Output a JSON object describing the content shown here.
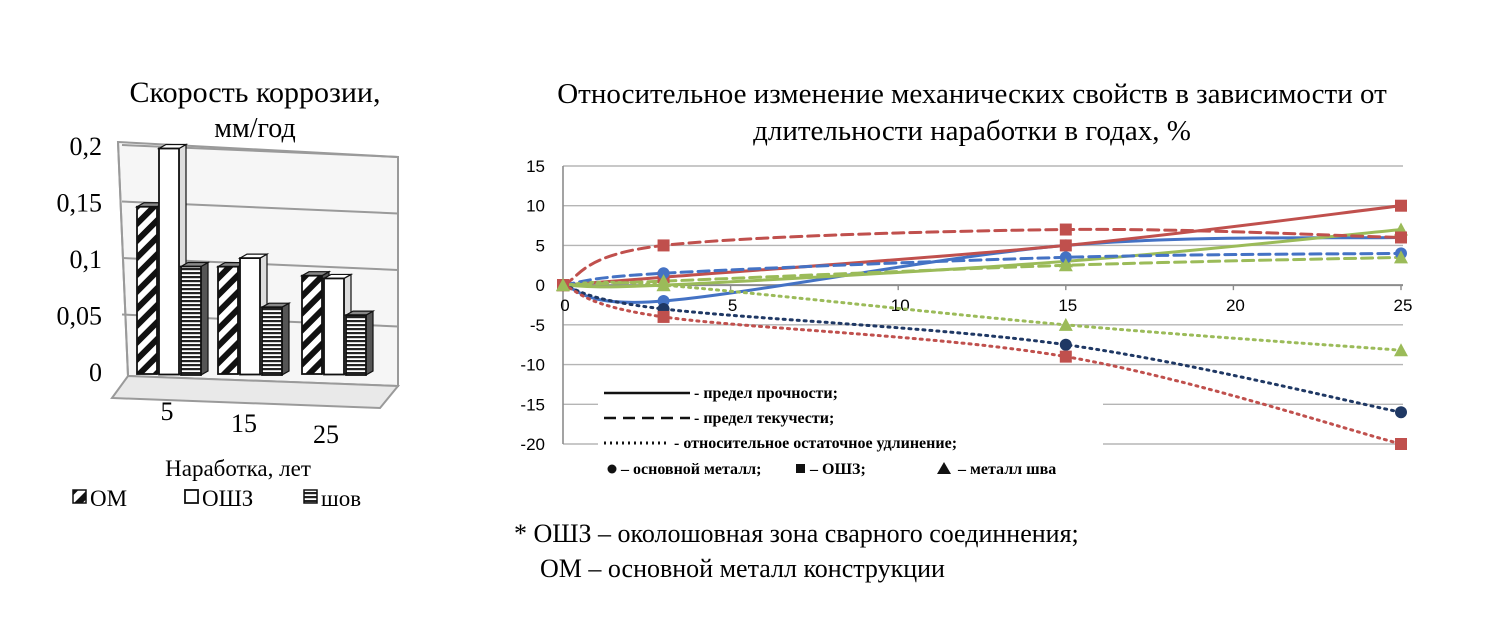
{
  "chart_data": [
    {
      "type": "bar",
      "title_line1": "Скорость коррозии,",
      "title_line2": "мм/год",
      "xlabel": "Наработка, лет",
      "categories": [
        "5",
        "15",
        "25"
      ],
      "y_ticks": [
        "0",
        "0,05",
        "0,1",
        "0,15",
        "0,2"
      ],
      "ylim": [
        0,
        0.2
      ],
      "series": [
        {
          "name": "ОМ",
          "pattern": "diagonal-hatch",
          "values": [
            0.148,
            0.095,
            0.087
          ]
        },
        {
          "name": "ОШЗ",
          "pattern": "white",
          "values": [
            0.2,
            0.103,
            0.085
          ]
        },
        {
          "name": "шов",
          "pattern": "horizontal-hatch",
          "values": [
            0.096,
            0.06,
            0.053
          ]
        }
      ],
      "legend": [
        "ОМ",
        "ОШЗ",
        "шов"
      ]
    },
    {
      "type": "line",
      "title_line1": "Относительное изменение механических свойств в зависимости от",
      "title_line2": "длительности наработки в годах, %",
      "x": [
        0,
        3,
        15,
        25
      ],
      "x_ticks": [
        "0",
        "5",
        "10",
        "15",
        "20",
        "25"
      ],
      "y_ticks": [
        "15",
        "10",
        "5",
        "0",
        "-5",
        "-10",
        "-15",
        "-20"
      ],
      "xlim": [
        0,
        25
      ],
      "ylim": [
        -20,
        15
      ],
      "grid": true,
      "colors": {
        "blue": "#4472c4",
        "red": "#c0504d",
        "green": "#9bbb59",
        "navy": "#1f3864"
      },
      "series": [
        {
          "property": "strength",
          "material": "base",
          "values": [
            0,
            -2,
            5,
            6
          ],
          "color": "#4472c4",
          "style": "solid"
        },
        {
          "property": "strength",
          "material": "haz",
          "values": [
            0,
            1,
            5,
            10
          ],
          "color": "#c0504d",
          "style": "solid"
        },
        {
          "property": "strength",
          "material": "weld",
          "values": [
            0,
            0,
            3,
            7
          ],
          "color": "#9bbb59",
          "style": "solid"
        },
        {
          "property": "yield",
          "material": "base",
          "values": [
            0,
            1.5,
            3.5,
            4
          ],
          "color": "#4472c4",
          "style": "dashed"
        },
        {
          "property": "yield",
          "material": "haz",
          "values": [
            0,
            5,
            7,
            6
          ],
          "color": "#c0504d",
          "style": "dashed"
        },
        {
          "property": "yield",
          "material": "weld",
          "values": [
            0,
            0.5,
            2.5,
            3.5
          ],
          "color": "#9bbb59",
          "style": "dashed"
        },
        {
          "property": "elongation",
          "material": "base",
          "values": [
            0,
            -3,
            -7.5,
            -16
          ],
          "color": "#1f3864",
          "style": "dotted"
        },
        {
          "property": "elongation",
          "material": "haz",
          "values": [
            0,
            -4,
            -9,
            -20
          ],
          "color": "#c0504d",
          "style": "dotted"
        },
        {
          "property": "elongation",
          "material": "weld",
          "values": [
            0,
            0,
            -5,
            -8.2
          ],
          "color": "#9bbb59",
          "style": "dotted"
        }
      ],
      "legend": {
        "solid": "- предел прочности;",
        "dashed": "- предел текучести;",
        "dotted": "- относительное остаточное удлинение;",
        "marker_base": "– основной металл;",
        "marker_haz": "– ОШЗ;",
        "marker_weld": "– металл шва"
      }
    }
  ],
  "footnote_line1": "* ОШЗ – околошовная зона сварного соединнения;",
  "footnote_line2": "ОМ – основной металл конструкции"
}
